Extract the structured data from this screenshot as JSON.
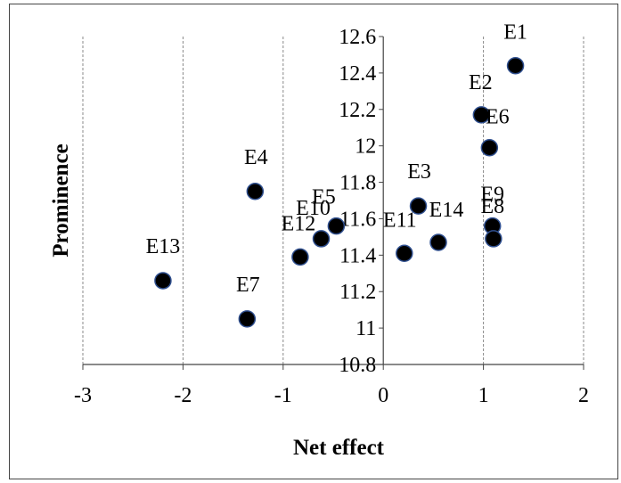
{
  "chart_data": {
    "type": "scatter",
    "title": "",
    "xlabel": "Net effect",
    "ylabel": "Prominence",
    "xlim": [
      -3,
      2
    ],
    "ylim": [
      10.8,
      12.6
    ],
    "x_ticks": [
      "-3",
      "-2",
      "-1",
      "0",
      "1",
      "2"
    ],
    "y_ticks": [
      "10.8",
      "11",
      "11.2",
      "11.4",
      "11.6",
      "11.8",
      "12",
      "12.2",
      "12.4",
      "12.6"
    ],
    "grid": "vertical dashed",
    "marker_color": "#000000",
    "marker_edge": "#2f4f8f",
    "points": [
      {
        "label": "E1",
        "x": 1.32,
        "y": 12.44
      },
      {
        "label": "E2",
        "x": 0.98,
        "y": 12.17
      },
      {
        "label": "E6",
        "x": 1.06,
        "y": 11.99
      },
      {
        "label": "E3",
        "x": 0.35,
        "y": 11.67
      },
      {
        "label": "E4",
        "x": -1.28,
        "y": 11.75
      },
      {
        "label": "E5",
        "x": -0.47,
        "y": 11.56
      },
      {
        "label": "E10",
        "x": -0.62,
        "y": 11.49
      },
      {
        "label": "E12",
        "x": -0.83,
        "y": 11.39
      },
      {
        "label": "E11",
        "x": 0.21,
        "y": 11.41
      },
      {
        "label": "E14",
        "x": 0.55,
        "y": 11.47
      },
      {
        "label": "E9",
        "x": 1.09,
        "y": 11.56
      },
      {
        "label": "E8",
        "x": 1.1,
        "y": 11.49
      },
      {
        "label": "E13",
        "x": -2.2,
        "y": 11.26
      },
      {
        "label": "E7",
        "x": -1.36,
        "y": 11.05
      }
    ]
  }
}
